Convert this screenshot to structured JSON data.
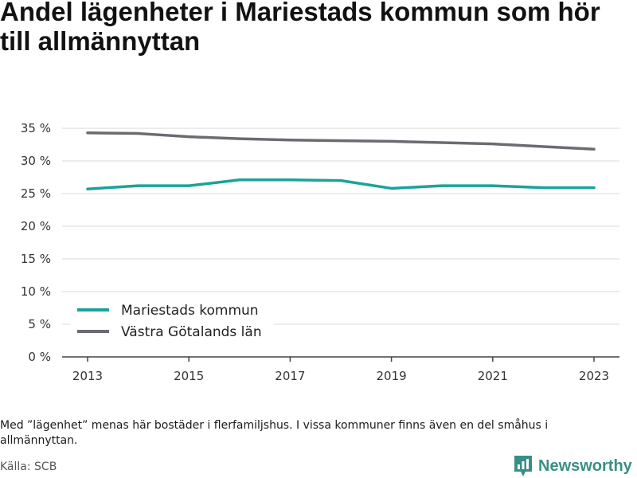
{
  "title": "Andel lägenheter i Mariestads kommun som hör till allmännyttan",
  "note": "Med ”lägenhet” menas här bostäder i flerfamiljshus. I vissa kommuner finns även en del småhus i allmännyttan.",
  "source": "Källa: SCB",
  "brand": "Newsworthy",
  "colors": {
    "mariestad": "#1aa39a",
    "vastra": "#6b6b72",
    "brand": "#3a8f85"
  },
  "chart_data": {
    "type": "line",
    "title": "Andel lägenheter i Mariestads kommun som hör till allmännyttan",
    "x": [
      2013,
      2014,
      2015,
      2016,
      2017,
      2018,
      2019,
      2020,
      2021,
      2022,
      2023
    ],
    "xticks": [
      "2013",
      "2015",
      "2017",
      "2019",
      "2021",
      "2023"
    ],
    "yticks": [
      "0 %",
      "5 %",
      "10 %",
      "15 %",
      "20 %",
      "25 %",
      "30 %",
      "35 %"
    ],
    "ylim": [
      0,
      35
    ],
    "grid": true,
    "legend": "bottom-left",
    "series": [
      {
        "name": "Mariestads kommun",
        "color": "#1aa39a",
        "values": [
          25.7,
          26.2,
          26.2,
          27.1,
          27.1,
          27.0,
          25.8,
          26.2,
          26.2,
          25.9,
          25.9
        ]
      },
      {
        "name": "Västra Götalands län",
        "color": "#6b6b72",
        "values": [
          34.3,
          34.2,
          33.7,
          33.4,
          33.2,
          33.1,
          33.0,
          32.8,
          32.6,
          32.2,
          31.8
        ]
      }
    ]
  }
}
